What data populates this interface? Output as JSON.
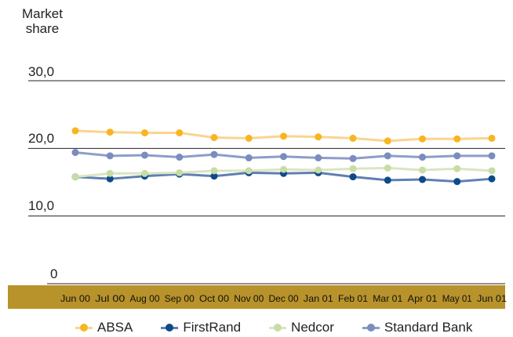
{
  "chart_data": {
    "type": "line",
    "ylabel_line1": "Market",
    "ylabel_line2": "share",
    "ytick_labels": [
      "30,0",
      "20,0",
      "10,0",
      "0"
    ],
    "yticks": [
      30,
      20,
      10,
      0
    ],
    "ylim": [
      0,
      30
    ],
    "categories": [
      "Jun 00",
      "Jul 00",
      "Aug 00",
      "Sep 00",
      "Oct 00",
      "Nov 00",
      "Dec 00",
      "Jan 01",
      "Feb 01",
      "Mar 01",
      "Apr 01",
      "May 01",
      "Jun 01"
    ],
    "series": [
      {
        "name": "ABSA",
        "color": "#f7b520",
        "line_color": "#f9d58f",
        "values": [
          22.6,
          22.4,
          22.3,
          22.3,
          21.6,
          21.5,
          21.8,
          21.7,
          21.5,
          21.1,
          21.4,
          21.4,
          21.5
        ]
      },
      {
        "name": "FirstRand",
        "color": "#0c4a8a",
        "line_color": "#5f7fb2",
        "values": [
          15.8,
          15.5,
          15.9,
          16.2,
          15.9,
          16.4,
          16.3,
          16.4,
          15.8,
          15.3,
          15.4,
          15.1,
          15.5
        ]
      },
      {
        "name": "Nedcor",
        "color": "#c7dca6",
        "line_color": "#d9e6c2",
        "values": [
          15.8,
          16.3,
          16.3,
          16.4,
          16.7,
          16.7,
          16.9,
          16.8,
          17.0,
          17.1,
          16.8,
          17.0,
          16.7
        ]
      },
      {
        "name": "Standard Bank",
        "color": "#7a8cc0",
        "line_color": "#8e9dc8",
        "values": [
          19.4,
          18.9,
          19.0,
          18.7,
          19.1,
          18.6,
          18.8,
          18.6,
          18.5,
          18.9,
          18.7,
          18.9,
          18.9
        ]
      }
    ],
    "grid": true,
    "legend_position": "bottom",
    "colors": {
      "axis_band": "#b8922a",
      "gridline": "#222222"
    }
  }
}
